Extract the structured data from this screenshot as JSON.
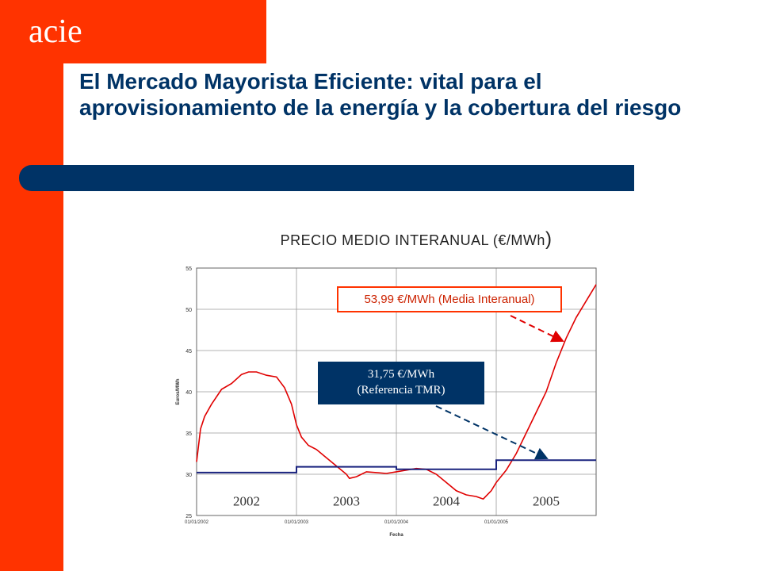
{
  "logo": "acie",
  "title": "El Mercado Mayorista Eficiente: vital para el aprovisionamiento de la energía y la cobertura del riesgo",
  "colors": {
    "accent": "#ff3300",
    "navy": "#003366",
    "series_red": "#e00000",
    "series_blue": "#1a237e"
  },
  "chart_title_main": "PRECIO MEDIO INTERANUAL (€/MWh",
  "chart_title_paren": ")",
  "annotations": {
    "red": "53,99 €/MWh (Media Interanual)",
    "blue_line1": "31,75 €/MWh",
    "blue_line2": "(Referencia TMR)"
  },
  "chart_data": {
    "type": "line",
    "ylabel": "Euros/MWh",
    "xlabel": "Fecha",
    "ylim": [
      25,
      55
    ],
    "yticks": [
      25,
      30,
      35,
      40,
      45,
      50,
      55
    ],
    "xlim": [
      "01/01/2002",
      "31/12/2005"
    ],
    "xticks": [
      "01/01/2002",
      "01/01/2003",
      "01/01/2004",
      "01/01/2005"
    ],
    "year_labels": [
      "2002",
      "2003",
      "2004",
      "2005"
    ],
    "grid": true,
    "series": [
      {
        "color": "#e00000",
        "x": [
          2002.0,
          2002.04,
          2002.08,
          2002.15,
          2002.25,
          2002.35,
          2002.45,
          2002.52,
          2002.6,
          2002.7,
          2002.8,
          2002.88,
          2002.95,
          2003.0,
          2003.05,
          2003.12,
          2003.2,
          2003.3,
          2003.4,
          2003.5,
          2003.53,
          2003.6,
          2003.7,
          2003.8,
          2003.9,
          2004.0,
          2004.1,
          2004.2,
          2004.3,
          2004.4,
          2004.5,
          2004.6,
          2004.7,
          2004.8,
          2004.87,
          2004.95,
          2005.0,
          2005.1,
          2005.2,
          2005.3,
          2005.4,
          2005.5,
          2005.6,
          2005.7,
          2005.8,
          2005.9,
          2006.0
        ],
        "y": [
          31.5,
          35.5,
          37.0,
          38.5,
          40.3,
          41.0,
          42.1,
          42.4,
          42.4,
          42.0,
          41.8,
          40.5,
          38.5,
          36.0,
          34.5,
          33.5,
          33.0,
          32.0,
          31.0,
          30.0,
          29.5,
          29.7,
          30.3,
          30.2,
          30.1,
          30.3,
          30.5,
          30.7,
          30.6,
          30.0,
          29.0,
          28.0,
          27.5,
          27.3,
          27.0,
          28.0,
          29.0,
          30.5,
          32.5,
          35.0,
          37.5,
          40.0,
          43.5,
          46.5,
          49.0,
          51.0,
          53.0
        ]
      },
      {
        "color": "#1a237e",
        "x": [
          2002.0,
          2003.0,
          2003.0,
          2004.0,
          2004.0,
          2005.0,
          2005.0,
          2006.0
        ],
        "y": [
          30.2,
          30.2,
          30.9,
          30.9,
          30.6,
          30.6,
          31.7,
          31.7
        ]
      }
    ]
  }
}
